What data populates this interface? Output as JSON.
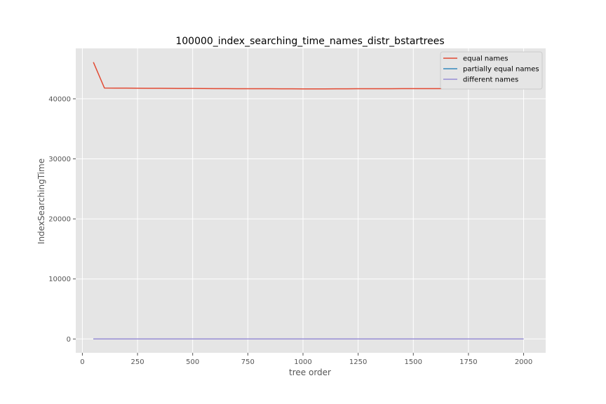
{
  "chart_data": {
    "type": "line",
    "title": "100000_index_searching_time_names_distr_bstartrees",
    "xlabel": "tree order",
    "ylabel": "IndexSearchingTime",
    "x": [
      50,
      100,
      150,
      200,
      250,
      300,
      350,
      400,
      450,
      500,
      550,
      600,
      650,
      700,
      750,
      800,
      850,
      900,
      950,
      1000,
      1050,
      1100,
      1150,
      1200,
      1250,
      1300,
      1350,
      1400,
      1450,
      1500,
      1550,
      1600,
      1650,
      1700,
      1750,
      1800,
      1850,
      1900,
      1950,
      2000
    ],
    "series": [
      {
        "name": "equal names",
        "color": "#E24A33",
        "values": [
          46100,
          41800,
          41790,
          41780,
          41770,
          41760,
          41750,
          41740,
          41730,
          41720,
          41710,
          41700,
          41700,
          41690,
          41690,
          41680,
          41680,
          41670,
          41670,
          41660,
          41660,
          41660,
          41670,
          41670,
          41680,
          41680,
          41690,
          41690,
          41700,
          41700,
          41700,
          41700,
          41700,
          41700,
          41700,
          41700,
          41700,
          41700,
          41700,
          41700
        ]
      },
      {
        "name": "partially equal names",
        "color": "#348ABD",
        "values": [
          5,
          5,
          5,
          5,
          5,
          5,
          5,
          5,
          5,
          5,
          5,
          5,
          5,
          5,
          5,
          5,
          5,
          5,
          5,
          5,
          5,
          5,
          5,
          5,
          5,
          5,
          5,
          5,
          5,
          5,
          5,
          5,
          5,
          5,
          5,
          5,
          5,
          5,
          5,
          5
        ]
      },
      {
        "name": "different names",
        "color": "#988ED5",
        "values": [
          5,
          5,
          5,
          5,
          5,
          5,
          5,
          5,
          5,
          5,
          5,
          5,
          5,
          5,
          5,
          5,
          5,
          5,
          5,
          5,
          5,
          5,
          5,
          5,
          5,
          5,
          5,
          5,
          5,
          5,
          5,
          5,
          5,
          5,
          5,
          5,
          5,
          5,
          5,
          5
        ]
      }
    ],
    "xlim": [
      -30,
      2100
    ],
    "ylim": [
      -2300,
      48400
    ],
    "xticks": [
      0,
      250,
      500,
      750,
      1000,
      1250,
      1500,
      1750,
      2000
    ],
    "xtick_labels": [
      "0",
      "250",
      "500",
      "750",
      "1000",
      "1250",
      "1500",
      "1750",
      "2000"
    ],
    "yticks": [
      0,
      10000,
      20000,
      30000,
      40000
    ],
    "ytick_labels": [
      "0",
      "10000",
      "20000",
      "30000",
      "40000"
    ],
    "grid": true,
    "legend_position": "top-right",
    "background_color": "#E5E5E5",
    "grid_color": "#FFFFFF"
  }
}
